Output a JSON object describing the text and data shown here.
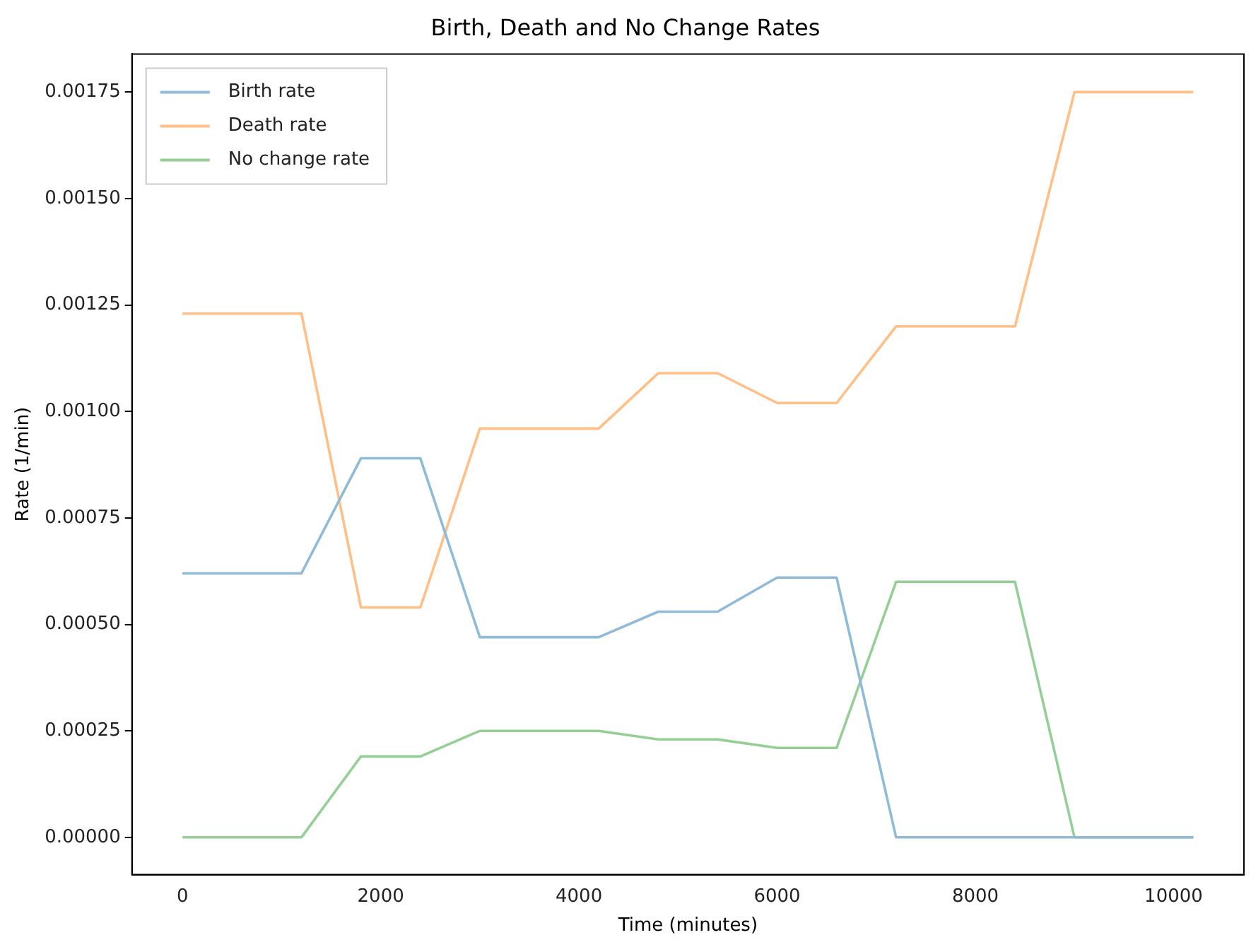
{
  "chart_data": {
    "type": "line",
    "title": "Birth, Death and No Change Rates",
    "xlabel": "Time (minutes)",
    "ylabel": "Rate (1/min)",
    "x": [
      0,
      600,
      1200,
      1800,
      2400,
      3000,
      3600,
      4200,
      4800,
      5400,
      6000,
      6600,
      7200,
      7800,
      8400,
      9000,
      9600,
      10200
    ],
    "series": [
      {
        "name": "Birth rate",
        "color": "#8fbbd9",
        "values": [
          0.00062,
          0.00062,
          0.00062,
          0.00089,
          0.00089,
          0.00047,
          0.00047,
          0.00047,
          0.00053,
          0.00053,
          0.00061,
          0.00061,
          0,
          0,
          0,
          0,
          0,
          0
        ]
      },
      {
        "name": "Death rate",
        "color": "#ffbf86",
        "values": [
          0.00123,
          0.00123,
          0.00123,
          0.00054,
          0.00054,
          0.00096,
          0.00096,
          0.00096,
          0.00109,
          0.00109,
          0.00102,
          0.00102,
          0.0012,
          0.0012,
          0.0012,
          0.00175,
          0.00175,
          0.00175
        ]
      },
      {
        "name": "No change rate",
        "color": "#95cf95",
        "values": [
          0,
          0,
          0,
          0.00019,
          0.00019,
          0.00025,
          0.00025,
          0.00025,
          0.00023,
          0.00023,
          0.00021,
          0.00021,
          0.0006,
          0.0006,
          0.0006,
          0,
          0,
          0
        ]
      }
    ],
    "xlim": [
      -510,
      10710
    ],
    "ylim": [
      -8.76e-05,
      0.0018396
    ],
    "xticks": [
      0,
      2000,
      4000,
      6000,
      8000,
      10000
    ],
    "yticks": [
      {
        "value": 0,
        "label": "0.00000"
      },
      {
        "value": 0.00025,
        "label": "0.00025"
      },
      {
        "value": 0.0005,
        "label": "0.00050"
      },
      {
        "value": 0.00075,
        "label": "0.00075"
      },
      {
        "value": 0.001,
        "label": "0.00100"
      },
      {
        "value": 0.00125,
        "label": "0.00125"
      },
      {
        "value": 0.0015,
        "label": "0.00150"
      },
      {
        "value": 0.00175,
        "label": "0.00175"
      }
    ],
    "legend": "top left",
    "marker": "none",
    "line_style": "solid"
  }
}
